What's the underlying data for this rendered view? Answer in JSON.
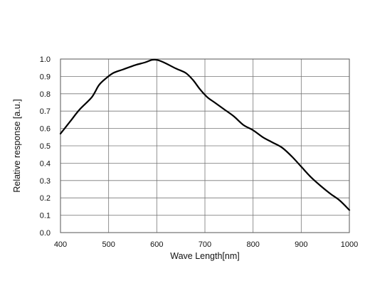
{
  "chart_data": {
    "type": "line",
    "title": "",
    "xlabel": "Wave Length[nm]",
    "ylabel": "Relative response [a.u.]",
    "xlim": [
      400,
      1000
    ],
    "ylim": [
      0.0,
      1.0
    ],
    "x_ticks": [
      "400",
      "500",
      "600",
      "700",
      "800",
      "900",
      "1000"
    ],
    "y_ticks": [
      "0.0",
      "0.1",
      "0.2",
      "0.3",
      "0.4",
      "0.5",
      "0.6",
      "0.7",
      "0.8",
      "0.9",
      "1.0"
    ],
    "grid": true,
    "legend": "none",
    "line_color": "#000000",
    "series": [
      {
        "x": [
          400,
          420,
          440,
          465,
          480,
          495,
          510,
          530,
          555,
          575,
          590,
          600,
          615,
          640,
          660,
          675,
          690,
          705,
          720,
          740,
          760,
          780,
          800,
          820,
          840,
          860,
          880,
          900,
          920,
          940,
          960,
          980,
          1000
        ],
        "y": [
          0.57,
          0.64,
          0.71,
          0.78,
          0.85,
          0.89,
          0.92,
          0.94,
          0.965,
          0.98,
          0.995,
          0.995,
          0.98,
          0.945,
          0.92,
          0.88,
          0.825,
          0.78,
          0.75,
          0.71,
          0.67,
          0.62,
          0.59,
          0.55,
          0.52,
          0.49,
          0.44,
          0.38,
          0.32,
          0.27,
          0.225,
          0.185,
          0.13
        ]
      }
    ]
  }
}
